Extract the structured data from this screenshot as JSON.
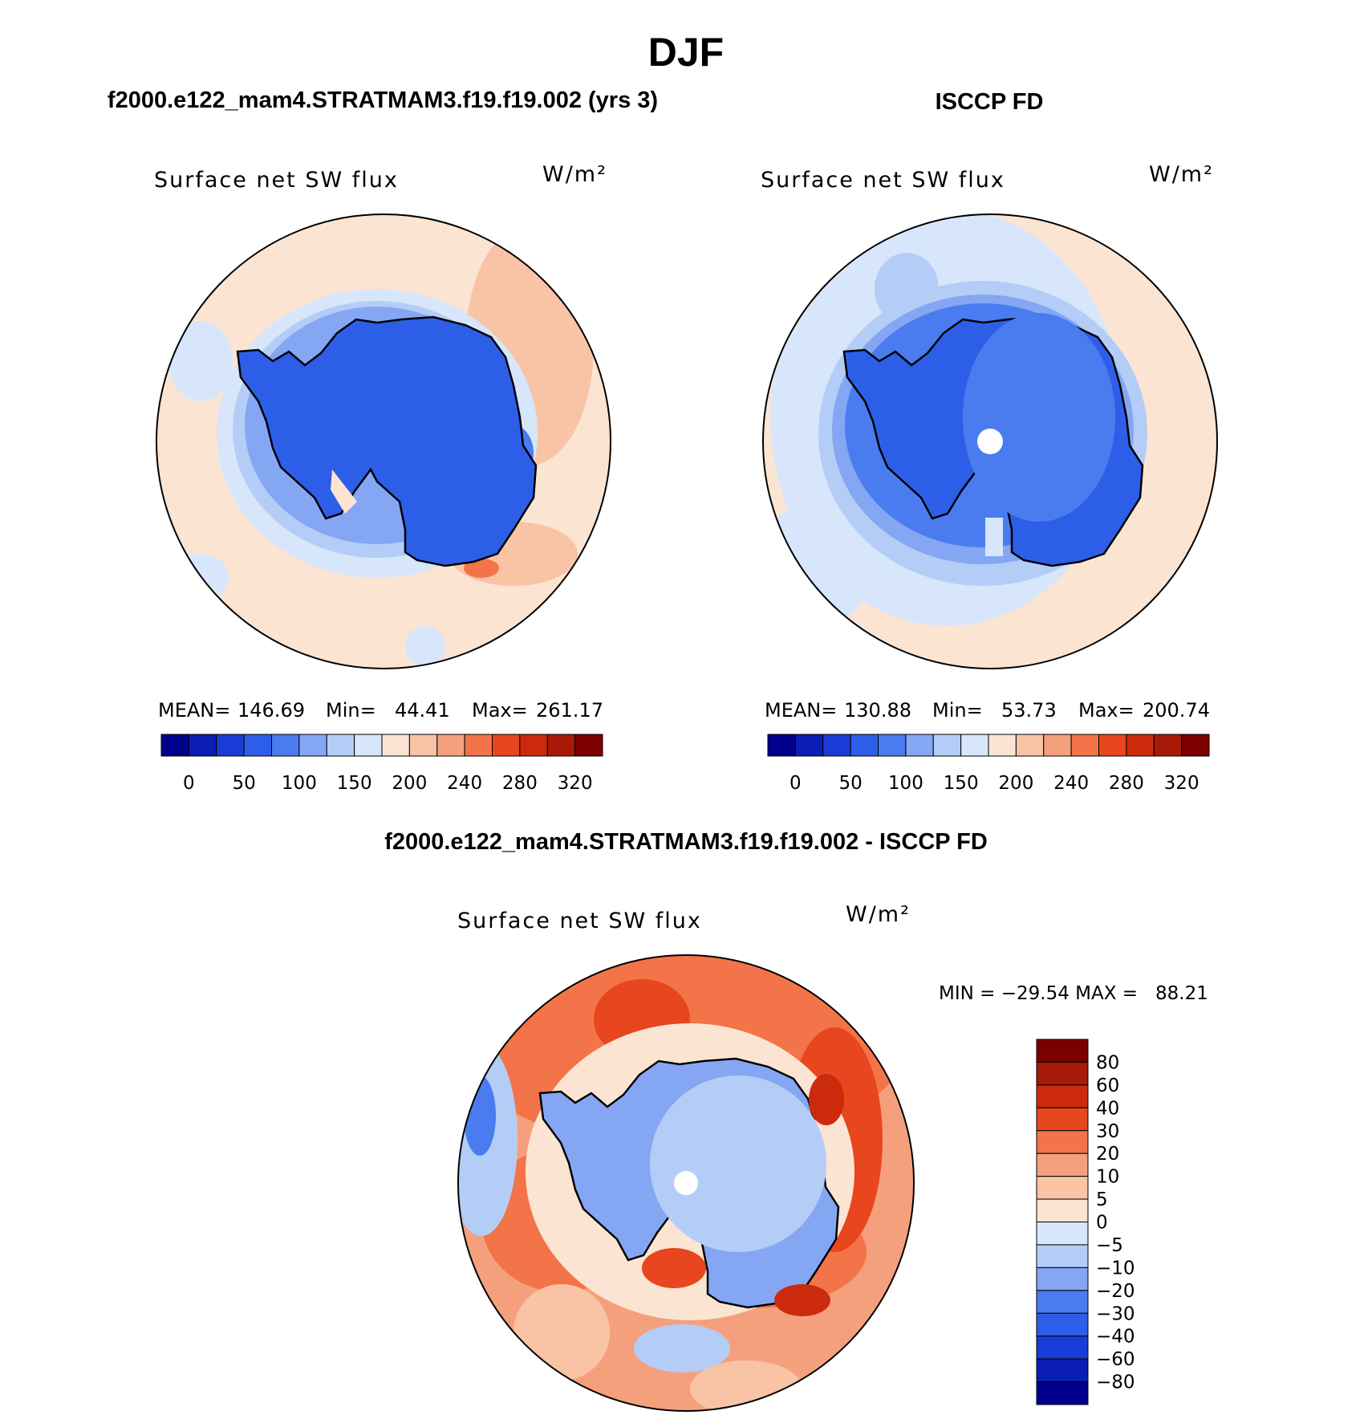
{
  "figure": {
    "title": "DJF",
    "top_left_title": "f2000.e122_mam4.STRATMAM3.f19.f19.002 (yrs 3)",
    "top_right_title": "ISCCP FD",
    "bottom_title": "f2000.e122_mam4.STRATMAM3.f19.f19.002 - ISCCP FD"
  },
  "panels": [
    {
      "id": "model",
      "variable": "Surface net SW flux",
      "units": "W/m²",
      "stats": {
        "mean_label": "MEAN=",
        "mean": "146.69",
        "min_label": "Min=",
        "min": "44.41",
        "max_label": "Max=",
        "max": "261.17"
      },
      "colorbar_labels": [
        "0",
        "50",
        "100",
        "150",
        "200",
        "240",
        "280",
        "320"
      ]
    },
    {
      "id": "obs",
      "variable": "Surface net SW flux",
      "units": "W/m²",
      "stats": {
        "mean_label": "MEAN=",
        "mean": "130.88",
        "min_label": "Min=",
        "min": "53.73",
        "max_label": "Max=",
        "max": "200.74"
      },
      "colorbar_labels": [
        "0",
        "50",
        "100",
        "150",
        "200",
        "240",
        "280",
        "320"
      ]
    },
    {
      "id": "diff",
      "variable": "Surface net SW flux",
      "units": "W/m²",
      "minmax_text": "MIN = −29.54 MAX =   88.21",
      "colorbar_labels": [
        "80",
        "60",
        "40",
        "30",
        "20",
        "10",
        "5",
        "0",
        "−5",
        "−10",
        "−20",
        "−30",
        "−40",
        "−60",
        "−80"
      ]
    }
  ],
  "colors": {
    "abs_scale": [
      "#00008c",
      "#0a1eb4",
      "#1a3cd6",
      "#2d5ee8",
      "#4a7cf0",
      "#85a6f3",
      "#b4cdf7",
      "#d7e6fa",
      "#fce4d2",
      "#f9c3a6",
      "#f5a07d",
      "#f27448",
      "#e8461e",
      "#cc2a0c",
      "#a81a08",
      "#7c0000"
    ],
    "diff_scale": [
      "#7c0000",
      "#a81a08",
      "#cc2a0c",
      "#e8461e",
      "#f27448",
      "#f5a07d",
      "#f9c3a6",
      "#fce4d2",
      "#d7e6fa",
      "#b4cdf7",
      "#85a6f3",
      "#4a7cf0",
      "#2d5ee8",
      "#1a3cd6",
      "#0a1eb4",
      "#00008c"
    ]
  }
}
